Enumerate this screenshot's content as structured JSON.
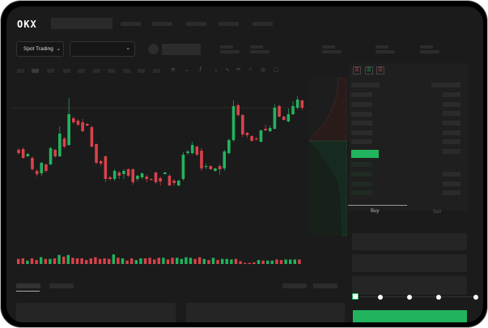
{
  "header": {
    "logo": "OKX"
  },
  "toolbar": {
    "market_dropdown": "Spot Trading",
    "pair_dropdown": ""
  },
  "trade": {
    "tabs": [
      "Buy",
      "Sell"
    ],
    "active_tab": "Buy",
    "slider_percent": 0
  },
  "colors": {
    "up": "#22b35e",
    "down": "#d9424a",
    "background": "#1b1b1b",
    "buy_button": "#22b35e"
  },
  "icons": [
    "chevron-down-icon",
    "pencil-icon",
    "magnet-icon",
    "eye-icon",
    "fullscreen-icon",
    "orderbook-both-icon",
    "orderbook-buy-icon",
    "orderbook-sell-icon"
  ],
  "chart_data": {
    "type": "candlestick",
    "candles": [
      [
        66,
        62,
        68,
        60
      ],
      [
        67,
        56,
        69,
        55
      ],
      [
        58,
        61,
        62,
        57
      ],
      [
        56,
        42,
        58,
        40
      ],
      [
        40,
        36,
        42,
        33
      ],
      [
        37,
        50,
        51,
        34
      ],
      [
        48,
        40,
        49,
        38
      ],
      [
        48,
        68,
        70,
        47
      ],
      [
        66,
        58,
        67,
        56
      ],
      [
        58,
        86,
        95,
        57
      ],
      [
        80,
        70,
        82,
        68
      ],
      [
        72,
        110,
        130,
        71
      ],
      [
        105,
        100,
        107,
        98
      ],
      [
        102,
        97,
        104,
        95
      ],
      [
        100,
        89,
        104,
        88
      ],
      [
        98,
        96,
        99,
        95
      ],
      [
        94,
        70,
        96,
        69
      ],
      [
        73,
        50,
        74,
        48
      ],
      [
        52,
        49,
        54,
        46
      ],
      [
        58,
        30,
        59,
        26
      ],
      [
        32,
        30,
        34,
        28
      ],
      [
        30,
        40,
        42,
        28
      ],
      [
        38,
        34,
        40,
        30
      ],
      [
        36,
        40,
        42,
        30
      ],
      [
        42,
        34,
        44,
        32
      ],
      [
        42,
        26,
        43,
        23
      ],
      [
        30,
        34,
        35,
        27
      ],
      [
        32,
        37,
        38,
        30
      ],
      [
        33,
        30,
        35,
        26
      ],
      [
        30,
        29,
        31,
        28
      ],
      [
        38,
        26,
        39,
        24
      ],
      [
        31,
        27,
        33,
        22
      ],
      [
        36,
        38,
        39,
        36
      ],
      [
        34,
        22,
        36,
        21
      ],
      [
        28,
        25,
        30,
        22
      ],
      [
        22,
        28,
        29,
        21
      ],
      [
        30,
        60,
        63,
        28
      ],
      [
        62,
        64,
        66,
        60
      ],
      [
        62,
        72,
        76,
        60
      ],
      [
        70,
        60,
        71,
        58
      ],
      [
        65,
        43,
        68,
        40
      ],
      [
        45,
        46,
        49,
        42
      ],
      [
        46,
        42,
        47,
        41
      ],
      [
        40,
        43,
        44,
        39
      ],
      [
        46,
        42,
        48,
        35
      ],
      [
        43,
        64,
        66,
        40
      ],
      [
        62,
        78,
        80,
        60
      ],
      [
        78,
        120,
        127,
        76
      ],
      [
        121,
        109,
        123,
        107
      ],
      [
        109,
        85,
        110,
        82
      ],
      [
        87,
        84,
        88,
        81
      ],
      [
        83,
        77,
        84,
        76
      ],
      [
        80,
        79,
        82,
        77
      ],
      [
        76,
        90,
        91,
        75
      ],
      [
        92,
        90,
        97,
        89
      ],
      [
        89,
        93,
        96,
        88
      ],
      [
        92,
        118,
        122,
        91
      ],
      [
        120,
        107,
        122,
        106
      ],
      [
        107,
        103,
        108,
        102
      ],
      [
        101,
        110,
        117,
        100
      ],
      [
        110,
        120,
        126,
        109
      ],
      [
        118,
        128,
        132,
        116
      ],
      [
        127,
        118,
        128,
        115
      ]
    ],
    "volumes": [
      9,
      10,
      6,
      10,
      7,
      12,
      9,
      9,
      10,
      16,
      13,
      16,
      11,
      10,
      10,
      7,
      10,
      12,
      9,
      10,
      9,
      17,
      11,
      10,
      6,
      10,
      7,
      10,
      10,
      11,
      8,
      11,
      11,
      8,
      11,
      11,
      9,
      12,
      11,
      9,
      12,
      9,
      7,
      11,
      7,
      9,
      9,
      8,
      9,
      5,
      2,
      2,
      3,
      7,
      6,
      6,
      6,
      8,
      7,
      8,
      8,
      8,
      8
    ]
  }
}
